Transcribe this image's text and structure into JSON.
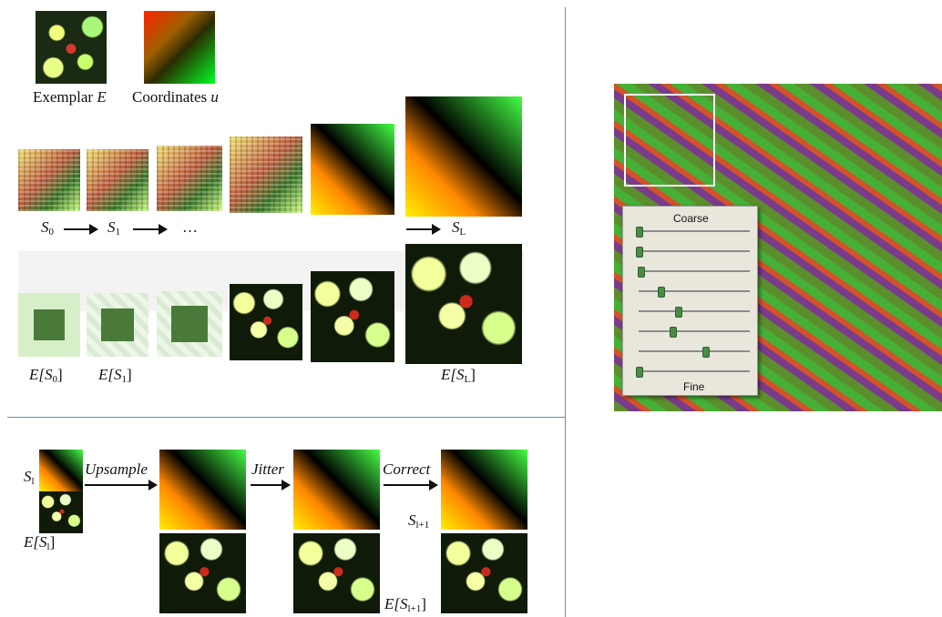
{
  "top": {
    "exemplar_label": "Exemplar",
    "exemplar_sym": "E",
    "coords_label": "Coordinates",
    "coords_sym": "u"
  },
  "pyramid": {
    "labels": [
      "S",
      "S",
      "…",
      "S"
    ],
    "subs": [
      "0",
      "1",
      "",
      "L"
    ],
    "bottom_labels": [
      "E[S",
      "E[S",
      "E[S"
    ],
    "bottom_subs": [
      "0",
      "1",
      "L"
    ]
  },
  "lower": {
    "s_label": "S",
    "s_sub": "l",
    "e_label": "E[S",
    "e_sub": "l",
    "step1": "Upsample",
    "step2": "Jitter",
    "step3": "Correct",
    "snext_label": "S",
    "snext_sub": "l+1",
    "enext_label": "E[S",
    "enext_sub": "l+1"
  },
  "right": {
    "coarse_label": "Coarse",
    "fine_label": "Fine",
    "slider_values": [
      0.0,
      0.0,
      0.02,
      0.2,
      0.35,
      0.3,
      0.6,
      0.0
    ]
  },
  "colors": {
    "divider": "#6b8ab0"
  }
}
